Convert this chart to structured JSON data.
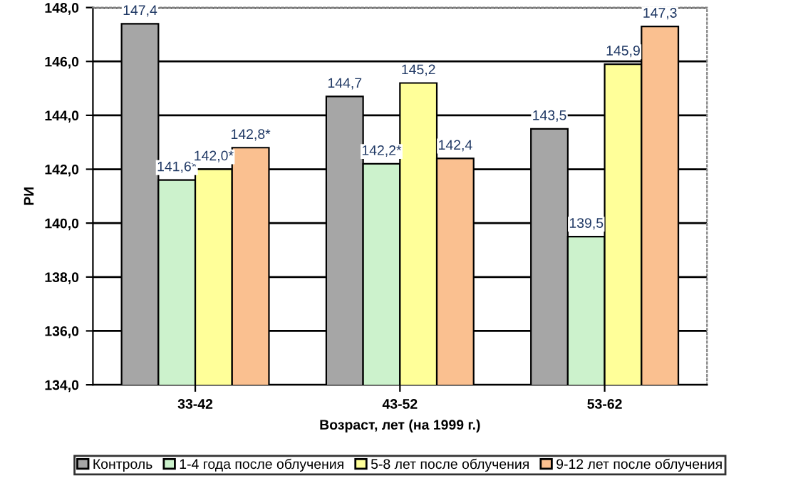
{
  "chart_data": {
    "type": "bar",
    "xlabel": "Возраст, лет (на 1999 г.)",
    "ylabel": "РИ",
    "categories": [
      "33-42",
      "43-52",
      "53-62"
    ],
    "series": [
      {
        "name": "Контроль",
        "color": "#a6a6a6",
        "values": [
          147.4,
          144.7,
          143.5
        ],
        "value_labels": [
          "147,4",
          "144,7",
          "143,5"
        ]
      },
      {
        "name": "1-4 года после облучения",
        "color": "#ccf2cc",
        "values": [
          141.6,
          142.2,
          139.5
        ],
        "value_labels": [
          "141,6*",
          "142,2*",
          "139,5"
        ]
      },
      {
        "name": "5-8 лет после облучения",
        "color": "#ffff99",
        "values": [
          142.0,
          145.2,
          145.9
        ],
        "value_labels": [
          "142,0*",
          "145,2",
          "145,9"
        ]
      },
      {
        "name": "9-12 лет после облучения",
        "color": "#fac090",
        "values": [
          142.8,
          142.4,
          147.3
        ],
        "value_labels": [
          "142,8*",
          "142,4",
          "147,3"
        ]
      }
    ],
    "ylim": [
      134,
      148
    ],
    "yticks": [
      {
        "value": 134,
        "label": "134,0"
      },
      {
        "value": 136,
        "label": "136,0"
      },
      {
        "value": 138,
        "label": "138,0"
      },
      {
        "value": 140,
        "label": "140,0"
      },
      {
        "value": 142,
        "label": "142,0"
      },
      {
        "value": 144,
        "label": "144,0"
      },
      {
        "value": 146,
        "label": "146,0"
      },
      {
        "value": 148,
        "label": "148,0"
      }
    ],
    "grid": "y",
    "legend": "bottom"
  }
}
